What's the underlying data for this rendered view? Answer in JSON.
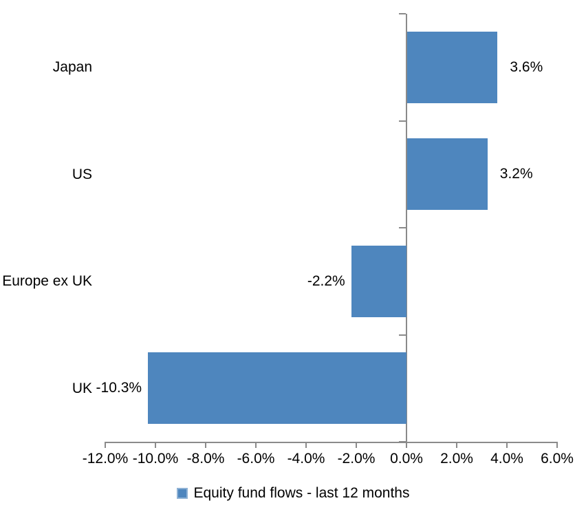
{
  "chart_data": {
    "type": "bar",
    "orientation": "horizontal",
    "title": "",
    "xlabel": "",
    "ylabel": "",
    "series_name": "Equity fund flows - last 12 months",
    "categories": [
      "Japan",
      "US",
      "Europe ex UK",
      "UK"
    ],
    "values": [
      3.6,
      3.2,
      -2.2,
      -10.3
    ],
    "data_labels": [
      "3.6%",
      "3.2%",
      "-2.2%",
      "-10.3%"
    ],
    "x_tick_labels": [
      "-12.0%",
      "-10.0%",
      "-8.0%",
      "-6.0%",
      "-4.0%",
      "-2.0%",
      "0.0%",
      "2.0%",
      "4.0%",
      "6.0%"
    ],
    "xlim": [
      -12,
      6
    ],
    "x_tick_step": 2,
    "grid": false,
    "legend_position": "bottom",
    "colors": {
      "bar": "#4E86BE",
      "legend_swatch_border": "#8FB2D5",
      "axis": "#8A8A8A",
      "text": "#000000",
      "background": "#FFFFFF"
    }
  }
}
